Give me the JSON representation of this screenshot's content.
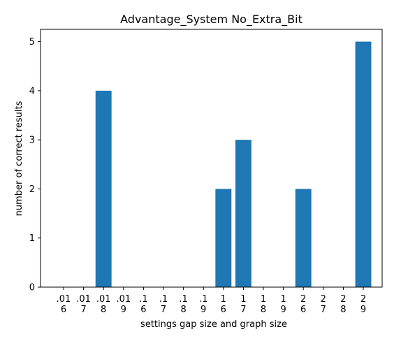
{
  "chart_data": {
    "type": "bar",
    "title": "Advantage_System No_Extra_Bit",
    "xlabel": "settings gap size and graph size",
    "ylabel": "number of correct results",
    "categories": [
      [
        ".01",
        "6"
      ],
      [
        ".01",
        "7"
      ],
      [
        ".01",
        "8"
      ],
      [
        ".01",
        "9"
      ],
      [
        ".1",
        "6"
      ],
      [
        ".1",
        "7"
      ],
      [
        ".1",
        "8"
      ],
      [
        ".1",
        "9"
      ],
      [
        "1",
        "6"
      ],
      [
        "1",
        "7"
      ],
      [
        "1",
        "8"
      ],
      [
        "1",
        "9"
      ],
      [
        "2",
        "6"
      ],
      [
        "2",
        "7"
      ],
      [
        "2",
        "8"
      ],
      [
        "2",
        "9"
      ]
    ],
    "values": [
      0,
      0,
      4,
      0,
      0,
      0,
      0,
      0,
      2,
      3,
      0,
      0,
      2,
      0,
      0,
      5
    ],
    "ylim": [
      0,
      5.25
    ],
    "yticks": [
      0,
      1,
      2,
      3,
      4,
      5
    ],
    "grid": false,
    "bar_color": "#1f77b4"
  }
}
